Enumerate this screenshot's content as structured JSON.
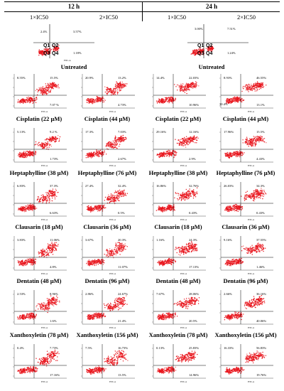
{
  "header": {
    "t12": "12 h",
    "t24": "24 h",
    "sub": [
      "1×IC50",
      "2×IC50",
      "1×IC50",
      "2×IC50"
    ]
  },
  "quadrants": [
    "Q1",
    "Q2",
    "Q3",
    "Q4"
  ],
  "axis_label": "FITC-A",
  "rows": [
    {
      "panels": [
        {
          "label": "",
          "q1": "",
          "q2": "",
          "q3": "",
          "q4": ""
        },
        {
          "label": "",
          "q1": "",
          "q2": "",
          "q3": "",
          "q4": ""
        },
        {
          "label": "",
          "q1": "",
          "q2": "",
          "q3": "",
          "q4": ""
        },
        {
          "label": "",
          "q1": "",
          "q2": "",
          "q3": "",
          "q4": ""
        }
      ],
      "legend_12": {
        "q1": "2.4%",
        "q2": "3.57%",
        "q4": "1.18%"
      },
      "legend_24": {
        "q1": "3.00%",
        "q2": "7.51%",
        "q4": "1.24%"
      }
    },
    {
      "center": "Untreated",
      "panels": [
        {
          "label": "",
          "q1": "8.55%",
          "q2": "15.5%",
          "q3": "",
          "q4": "7.07 %"
        },
        {
          "label": "",
          "q1": "20.9%",
          "q2": "13.2%",
          "q3": "",
          "q4": "4.73%"
        },
        {
          "label": "",
          "q1": "14.4%",
          "q2": "22.03%",
          "q3": "",
          "q4": "10.96%"
        },
        {
          "label": "",
          "q1": "8.93%",
          "q2": "46.55%",
          "q3": "30.4%",
          "q4": "13.1%"
        }
      ]
    },
    {
      "panels": [
        {
          "label": "Cisplatin (22 µM)",
          "q1": "5.13%",
          "q2": "9.2 %",
          "q3": "",
          "q4": "1.73%"
        },
        {
          "label": "Cisplatin (44 µM)",
          "q1": "17.3%",
          "q2": "7.03%",
          "q3": "",
          "q4": "2.67%"
        },
        {
          "label": "Cisplatin (22 µM)",
          "q1": "29.16%",
          "q2": "12.16%",
          "q3": "",
          "q4": "2.9%"
        },
        {
          "label": "Cisplatin (44 µM)",
          "q1": "17.96%",
          "q2": "15.5%",
          "q3": "",
          "q4": "4.43%"
        }
      ]
    },
    {
      "panels": [
        {
          "label": "Heptaphylline (38 µM)",
          "q1": "6.83%",
          "q2": "37.3%",
          "q3": "",
          "q4": "6.63%"
        },
        {
          "label": "Heptaphylline (76 µM)",
          "q1": "27.4%",
          "q2": "32.4%",
          "q3": "",
          "q4": "0.5%"
        },
        {
          "label": "Heptaphylline (38 µM)",
          "q1": "16.86%",
          "q2": "32.76%",
          "q3": "",
          "q4": "0.43%"
        },
        {
          "label": "Heptaphylline (76 µM)",
          "q1": "26.03%",
          "q2": "34.3%",
          "q3": "",
          "q4": "0.43%"
        }
      ]
    },
    {
      "panels": [
        {
          "label": "Clausarin (18 µM)",
          "q1": "3.83%",
          "q2": "11.06%",
          "q3": "",
          "q4": "4.8%"
        },
        {
          "label": "Clausarin (36 µM)",
          "q1": "3.67%",
          "q2": "20.3%",
          "q3": "",
          "q4": "11.07%"
        },
        {
          "label": "Clausarin (18 µM)",
          "q1": "1.16%",
          "q2": "24.3%",
          "q3": "",
          "q4": "17.13%"
        },
        {
          "label": "Clausarin (36 µM)",
          "q1": "9.16%",
          "q2": "37.55%",
          "q3": "",
          "q4": "1.46%"
        }
      ]
    },
    {
      "panels": [
        {
          "label": "Dentatin (48 µM)",
          "q1": "2.53%",
          "q2": "8.96%",
          "q3": "",
          "q4": "1.6%"
        },
        {
          "label": "Dentatin (96 µM)",
          "q1": "2.86%",
          "q2": "24.67%",
          "q3": "",
          "q4": "21.4%"
        },
        {
          "label": "Dentatin (48 µM)",
          "q1": "7.67%",
          "q2": "28.06%",
          "q3": "",
          "q4": "20.5%"
        },
        {
          "label": "Dentatin (96 µM)",
          "q1": "2.66%",
          "q2": "36.16%",
          "q3": "",
          "q4": "40.06%"
        }
      ]
    },
    {
      "panels": [
        {
          "label": "Xanthoxyletin (78 µM)",
          "q1": "0.4%",
          "q2": "7.73%",
          "q3": "",
          "q4": "17.16%"
        },
        {
          "label": "Xanthoxyletin (156 µM)",
          "q1": "7.5%",
          "q2": "16.73%",
          "q3": "",
          "q4": "13.5%"
        },
        {
          "label": "Xanthoxyletin (78 µM)",
          "q1": "0.13%",
          "q2": "25.83%",
          "q3": "",
          "q4": "14.96%"
        },
        {
          "label": "Xanthoxyletin (156 µM)",
          "q1": "16.33%",
          "q2": "56.83%",
          "q3": "",
          "q4": "19.76%"
        }
      ]
    }
  ]
}
